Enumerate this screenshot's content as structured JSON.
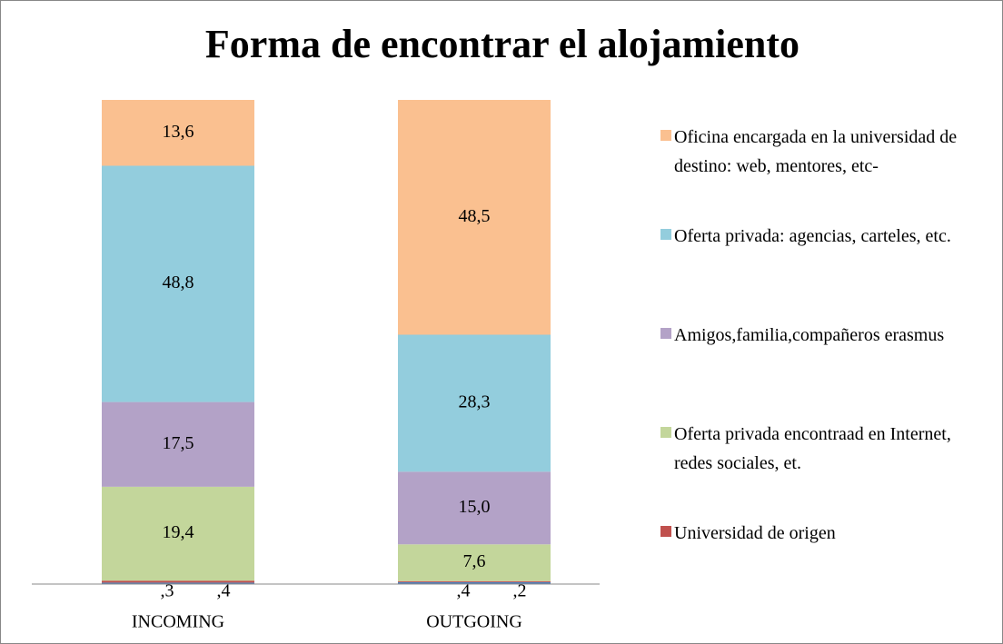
{
  "chart_data": {
    "type": "stacked_bar",
    "title": "Forma de encontrar el alojamiento",
    "categories": [
      "INCOMING",
      "OUTGOING"
    ],
    "series": [
      {
        "name": null,
        "color": "#4f81bd",
        "values": [
          0.3,
          0.4
        ],
        "value_labels": [
          ",3",
          ",4"
        ]
      },
      {
        "name": "Universidad de origen",
        "color": "#c0504d",
        "values": [
          0.4,
          0.2
        ],
        "value_labels": [
          ",4",
          ",2"
        ]
      },
      {
        "name": "Oferta privada encontraad en Internet, redes sociales, et.",
        "color": "#c3d69b",
        "values": [
          19.4,
          7.6
        ],
        "value_labels": [
          "19,4",
          "7,6"
        ]
      },
      {
        "name": "Amigos,familia,compañeros erasmus",
        "color": "#b3a2c7",
        "values": [
          17.5,
          15.0
        ],
        "value_labels": [
          "17,5",
          "15,0"
        ]
      },
      {
        "name": "Oferta privada: agencias, carteles, etc.",
        "color": "#93cddd",
        "values": [
          48.8,
          28.3
        ],
        "value_labels": [
          "48,8",
          "28,3"
        ]
      },
      {
        "name": "Oficina encargada en la universidad de destino: web, mentores, etc-",
        "color": "#fac090",
        "values": [
          13.6,
          48.5
        ],
        "value_labels": [
          "13,6",
          "48,5"
        ]
      }
    ],
    "ylim": [
      0,
      100
    ]
  }
}
